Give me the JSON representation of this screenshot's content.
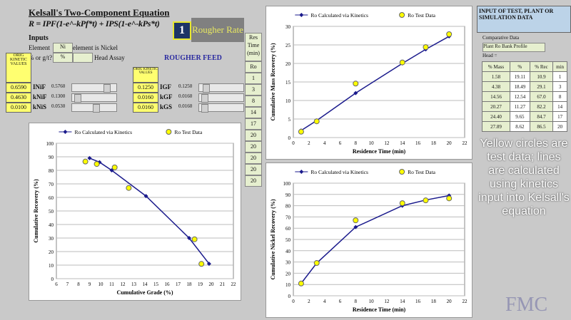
{
  "header": {
    "title": "Kelsall's Two-Component Equation",
    "equation": "R = IPF(1-e^-kPf*t) + IPS(1-e^-kPs*t)",
    "number": "1",
    "rate_label": "Rougher Rate"
  },
  "inputs": {
    "label": "Inputs",
    "element_label": "Element",
    "element_value": "Ni",
    "element_desc": "element is Nickel",
    "unit_label": "% or g/t?",
    "unit_value": "%",
    "head_assay_label": "Head Assay",
    "feed_label": "ROUGHER FEED",
    "orig_label": "ORIG KINETIC VALUES",
    "left": [
      {
        "orig": "0.6590",
        "name": "INiF",
        "value": "0.5760",
        "pos": 0.85
      },
      {
        "orig": "0.4630",
        "name": "kNiF",
        "value": "0.1300",
        "pos": 0.05
      },
      {
        "orig": "0.0100",
        "name": "kNiS",
        "value": "0.0530",
        "pos": 0.55
      }
    ],
    "right": [
      {
        "orig": "0.1250",
        "name": "IGF",
        "value": "0.1250",
        "pos": 0.1
      },
      {
        "orig": "0.0160",
        "name": "kGF",
        "value": "0.0160",
        "pos": 0.05
      },
      {
        "orig": "0.0160",
        "name": "kGS",
        "value": "0.0160",
        "pos": 0.05
      }
    ]
  },
  "res_time": {
    "header": "Res Time (min)",
    "sub": "Ro",
    "values": [
      "1",
      "3",
      "8",
      "14",
      "17",
      "20",
      "20",
      "20",
      "20",
      "20"
    ]
  },
  "test_data": {
    "title": "INPUT OF TEST, PLANT OR SIMULATION DATA",
    "comp_label": "Comparative Data",
    "profile": "Plant Ro Bank Profile",
    "head_label": "Head =",
    "columns": [
      "% Mass",
      "%",
      "% Rec",
      "min"
    ],
    "rows": [
      [
        "1.58",
        "19.11",
        "10.9",
        "1"
      ],
      [
        "4.38",
        "18.49",
        "29.1",
        "3"
      ],
      [
        "14.56",
        "12.54",
        "67.0",
        "8"
      ],
      [
        "20.27",
        "11.27",
        "82.2",
        "14"
      ],
      [
        "24.40",
        "9.65",
        "84.7",
        "17"
      ],
      [
        "27.89",
        "8.62",
        "86.5",
        "20"
      ]
    ]
  },
  "note": "Yellow circles are test data; lines are calculated using kinetics input into Kelsall's equation",
  "logo": "FMC",
  "colors": {
    "line": "#1a1a8c",
    "marker": "#ffff00"
  },
  "chart_data": [
    {
      "type": "line",
      "legend": [
        "Ro Calculated via Kinetics",
        "Ro Test Data"
      ],
      "xlabel": "Residence Time (min)",
      "ylabel": "Cumulative  Mass Recovery (%)",
      "xlim": [
        0,
        22
      ],
      "xstep": 2,
      "ylim": [
        0,
        30
      ],
      "ystep": 5,
      "calc": [
        [
          1,
          1.9
        ],
        [
          3,
          4.6
        ],
        [
          8,
          12
        ],
        [
          14,
          20
        ],
        [
          17,
          23.8
        ],
        [
          20,
          27.3
        ]
      ],
      "test": [
        [
          1,
          1.58
        ],
        [
          3,
          4.38
        ],
        [
          8,
          14.56
        ],
        [
          14,
          20.27
        ],
        [
          17,
          24.4
        ],
        [
          20,
          27.89
        ]
      ]
    },
    {
      "type": "line",
      "legend": [
        "Ro Calculated via Kinetics",
        "Ro Test Data"
      ],
      "xlabel": "Cumulative Grade (%)",
      "ylabel": "Cumulative Recovery (%)",
      "xlim": [
        6,
        22
      ],
      "xstep": 1,
      "ylim": [
        0,
        100
      ],
      "ystep": 10,
      "calc": [
        [
          9,
          89
        ],
        [
          9.9,
          86
        ],
        [
          11,
          80
        ],
        [
          14.1,
          61
        ],
        [
          18,
          30
        ],
        [
          19.8,
          11
        ]
      ],
      "test": [
        [
          8.62,
          86.5
        ],
        [
          9.65,
          84.7
        ],
        [
          11.27,
          82.2
        ],
        [
          12.54,
          67
        ],
        [
          18.49,
          29.1
        ],
        [
          19.11,
          10.9
        ]
      ]
    },
    {
      "type": "line",
      "legend": [
        "Ro Calculated via Kinetics",
        "Ro Test Data"
      ],
      "xlabel": "Residence Time (min)",
      "ylabel": "Cumulative  Nickel Recovery (%)",
      "xlim": [
        0,
        22
      ],
      "xstep": 2,
      "ylim": [
        0,
        100
      ],
      "ystep": 10,
      "calc": [
        [
          1,
          11
        ],
        [
          3,
          29
        ],
        [
          8,
          61
        ],
        [
          14,
          80
        ],
        [
          17,
          85
        ],
        [
          20,
          89
        ]
      ],
      "test": [
        [
          1,
          10.9
        ],
        [
          3,
          29.1
        ],
        [
          8,
          67
        ],
        [
          14,
          82.2
        ],
        [
          17,
          84.7
        ],
        [
          20,
          86.5
        ]
      ]
    }
  ]
}
